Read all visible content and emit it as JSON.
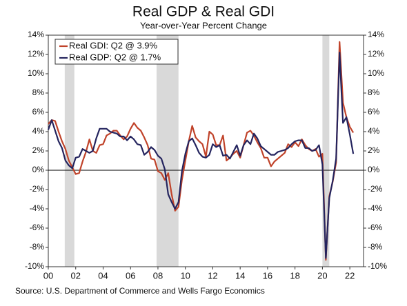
{
  "chart_data": {
    "type": "line",
    "title": "Real GDP & Real GDI",
    "subtitle": "Year-over-Year Percent Change",
    "source": "Source: U.S. Department of Commerce and Wells Fargo Economics",
    "x": [
      2000,
      2000.25,
      2000.5,
      2000.75,
      2001,
      2001.25,
      2001.5,
      2001.75,
      2002,
      2002.25,
      2002.5,
      2002.75,
      2003,
      2003.25,
      2003.5,
      2003.75,
      2004,
      2004.25,
      2004.5,
      2004.75,
      2005,
      2005.25,
      2005.5,
      2005.75,
      2006,
      2006.25,
      2006.5,
      2006.75,
      2007,
      2007.25,
      2007.5,
      2007.75,
      2008,
      2008.25,
      2008.5,
      2008.75,
      2009,
      2009.25,
      2009.5,
      2009.75,
      2010,
      2010.25,
      2010.5,
      2010.75,
      2011,
      2011.25,
      2011.5,
      2011.75,
      2012,
      2012.25,
      2012.5,
      2012.75,
      2013,
      2013.25,
      2013.5,
      2013.75,
      2014,
      2014.25,
      2014.5,
      2014.75,
      2015,
      2015.25,
      2015.5,
      2015.75,
      2016,
      2016.25,
      2016.5,
      2016.75,
      2017,
      2017.25,
      2017.5,
      2017.75,
      2018,
      2018.25,
      2018.5,
      2018.75,
      2019,
      2019.25,
      2019.5,
      2019.75,
      2020,
      2020.25,
      2020.5,
      2020.75,
      2021,
      2021.25,
      2021.5,
      2021.75,
      2022,
      2022.25
    ],
    "series": [
      {
        "name": "Real GDI: Q2 @ 3.9%",
        "color": "#c0432a",
        "values": [
          4.8,
          5.2,
          5.1,
          4.0,
          3.0,
          2.2,
          1.0,
          0.3,
          -0.4,
          -0.3,
          0.9,
          1.9,
          3.2,
          2.0,
          1.8,
          2.6,
          2.7,
          3.6,
          3.8,
          4.1,
          4.1,
          3.6,
          3.2,
          3.5,
          4.3,
          4.9,
          4.4,
          4.1,
          3.4,
          2.6,
          1.2,
          1.1,
          -0.1,
          -0.3,
          -1.0,
          -0.3,
          -2.5,
          -4.2,
          -3.8,
          -1.0,
          1.0,
          3.0,
          4.6,
          3.4,
          3.0,
          2.7,
          1.4,
          4.0,
          3.7,
          2.6,
          2.6,
          3.6,
          1.0,
          1.3,
          1.7,
          2.0,
          1.3,
          2.6,
          3.9,
          4.1,
          3.6,
          2.9,
          2.3,
          1.3,
          1.3,
          0.4,
          0.9,
          1.2,
          1.5,
          1.8,
          2.7,
          2.4,
          2.9,
          2.5,
          3.2,
          2.6,
          2.2,
          2.0,
          2.2,
          1.4,
          1.7,
          -9.3,
          -2.7,
          -1.2,
          0.8,
          13.3,
          7.0,
          5.5,
          4.5,
          3.9
        ]
      },
      {
        "name": "Real GDP: Q2 @ 1.7%",
        "color": "#24245e",
        "values": [
          4.2,
          5.2,
          4.1,
          3.0,
          2.3,
          1.0,
          0.5,
          0.2,
          1.3,
          1.4,
          2.2,
          2.0,
          1.8,
          2.0,
          3.3,
          4.3,
          4.3,
          4.3,
          4.0,
          3.9,
          3.8,
          3.5,
          3.5,
          3.1,
          3.5,
          3.2,
          2.7,
          2.6,
          1.6,
          1.9,
          2.4,
          2.1,
          1.5,
          1.2,
          0.1,
          -2.5,
          -3.3,
          -4.0,
          -3.3,
          -0.1,
          1.7,
          3.0,
          3.3,
          2.6,
          1.8,
          1.4,
          1.3,
          1.6,
          2.7,
          2.4,
          2.6,
          1.5,
          1.6,
          1.2,
          1.9,
          2.6,
          1.5,
          2.6,
          3.1,
          2.7,
          3.8,
          3.3,
          2.5,
          2.2,
          1.9,
          1.6,
          1.6,
          1.9,
          2.0,
          2.1,
          2.3,
          2.7,
          3.0,
          3.1,
          3.1,
          2.3,
          2.3,
          2.0,
          2.1,
          2.6,
          0.6,
          -9.1,
          -2.9,
          -1.1,
          1.2,
          12.2,
          4.9,
          5.5,
          3.7,
          1.7
        ]
      }
    ],
    "recessions": [
      [
        2001.2,
        2001.9
      ],
      [
        2007.9,
        2009.5
      ],
      [
        2020.0,
        2020.5
      ]
    ],
    "recession_color": "#d9d9d9",
    "legend": "top-left",
    "xlim": [
      2000,
      2023
    ],
    "xticks": [
      {
        "value": 2000,
        "label": "00"
      },
      {
        "value": 2002,
        "label": "02"
      },
      {
        "value": 2004,
        "label": "04"
      },
      {
        "value": 2006,
        "label": "06"
      },
      {
        "value": 2008,
        "label": "08"
      },
      {
        "value": 2010,
        "label": "10"
      },
      {
        "value": 2012,
        "label": "12"
      },
      {
        "value": 2014,
        "label": "14"
      },
      {
        "value": 2016,
        "label": "16"
      },
      {
        "value": 2018,
        "label": "18"
      },
      {
        "value": 2020,
        "label": "20"
      },
      {
        "value": 2022,
        "label": "22"
      }
    ],
    "ylim": [
      -10,
      14
    ],
    "yticks": [
      {
        "value": -10,
        "label": "-10%"
      },
      {
        "value": -8,
        "label": "-8%"
      },
      {
        "value": -6,
        "label": "-6%"
      },
      {
        "value": -4,
        "label": "-4%"
      },
      {
        "value": -2,
        "label": "-2%"
      },
      {
        "value": 0,
        "label": "0%"
      },
      {
        "value": 2,
        "label": "2%"
      },
      {
        "value": 4,
        "label": "4%"
      },
      {
        "value": 6,
        "label": "6%"
      },
      {
        "value": 8,
        "label": "8%"
      },
      {
        "value": 10,
        "label": "10%"
      },
      {
        "value": 12,
        "label": "12%"
      },
      {
        "value": 14,
        "label": "14%"
      }
    ],
    "y2lim": [
      -10,
      14
    ],
    "y2ticks": [
      {
        "value": -10,
        "label": "-10%"
      },
      {
        "value": -8,
        "label": "-8%"
      },
      {
        "value": -6,
        "label": "-6%"
      },
      {
        "value": -4,
        "label": "-4%"
      },
      {
        "value": -2,
        "label": "-2%"
      },
      {
        "value": 0,
        "label": "0%"
      },
      {
        "value": 2,
        "label": "2%"
      },
      {
        "value": 4,
        "label": "4%"
      },
      {
        "value": 6,
        "label": "6%"
      },
      {
        "value": 8,
        "label": "8%"
      },
      {
        "value": 10,
        "label": "10%"
      },
      {
        "value": 12,
        "label": "12%"
      },
      {
        "value": 14,
        "label": "14%"
      }
    ],
    "grid": false
  }
}
